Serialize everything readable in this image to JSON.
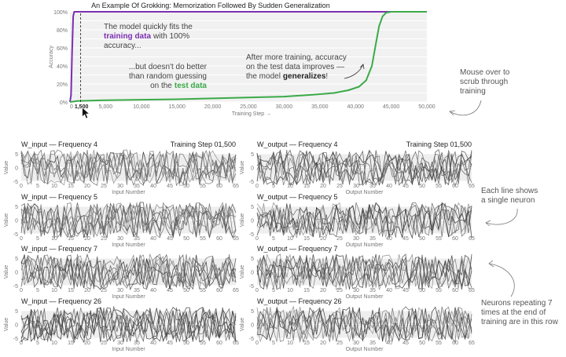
{
  "title": "An Example Of Grokking: Memorization Followed By Sudden Generalization",
  "chart_data": [
    {
      "type": "line",
      "xlabel": "Training Step →",
      "ylabel": "Accuracy",
      "xlim": [
        0,
        50000
      ],
      "ylim": [
        0,
        100
      ],
      "x_ticks": [
        0,
        5000,
        10000,
        15000,
        20000,
        25000,
        30000,
        35000,
        40000,
        45000,
        50000
      ],
      "x_tick_labels": [
        "0",
        "5,000",
        "10,000",
        "15,000",
        "20,000",
        "25,000",
        "30,000",
        "35,000",
        "40,000",
        "45,000",
        "50,000"
      ],
      "y_ticks": [
        0,
        20,
        40,
        60,
        80,
        100
      ],
      "y_tick_labels": [
        "0%",
        "20%",
        "40%",
        "60%",
        "80%",
        "100%"
      ],
      "current_step": 1500,
      "current_step_label": "1,500",
      "series": [
        {
          "key": "train",
          "color": "#7b2fb0",
          "x": [
            0,
            150,
            300,
            450,
            600,
            1000,
            2000,
            10000,
            20000,
            30000,
            40000,
            45000,
            50000
          ],
          "values": [
            0,
            8,
            55,
            95,
            100,
            100,
            100,
            100,
            100,
            100,
            100,
            100,
            100
          ]
        },
        {
          "key": "test",
          "color": "#3aaa48",
          "x": [
            0,
            1000,
            5000,
            10000,
            15000,
            20000,
            25000,
            30000,
            34000,
            37000,
            39000,
            40500,
            41500,
            42300,
            42800,
            43300,
            43800,
            44300,
            45000,
            50000
          ],
          "values": [
            0,
            1,
            2,
            2.5,
            3,
            4,
            5,
            6,
            8,
            10,
            13,
            17,
            24,
            40,
            62,
            84,
            95,
            99,
            100,
            100
          ]
        }
      ],
      "annotations": {
        "train_pre": "The model quickly fits the",
        "train_bold": "training data",
        "train_post": "with 100%",
        "train_line2": "accuracy...",
        "test_line1": "...but doesn't do better",
        "test_line2": "than random guessing",
        "test_pre": "on the",
        "test_bold": "test data",
        "gen_line1": "After more training, accuracy",
        "gen_line2": "on the test data improves —",
        "gen_pre": "the model",
        "gen_bold": "generalizes",
        "gen_post": "!"
      }
    },
    {
      "type": "line",
      "panel": "W_input — Frequency 4",
      "xlabel": "Input Number",
      "ylabel": "Value",
      "xlim": [
        0,
        65
      ],
      "ylim": [
        -5,
        5
      ],
      "y_ticks": [
        -5,
        0,
        5
      ],
      "x_ticks": [
        0,
        5,
        10,
        15,
        20,
        25,
        30,
        35,
        40,
        45,
        50,
        55,
        60,
        65
      ],
      "status": "Training Step 01,500"
    },
    {
      "type": "line",
      "panel": "W_output — Frequency 4",
      "xlabel": "Output Number",
      "ylabel": "Value",
      "xlim": [
        0,
        65
      ],
      "ylim": [
        -5,
        5
      ],
      "y_ticks": [
        -5,
        0,
        5
      ],
      "x_ticks": [
        0,
        5,
        10,
        15,
        20,
        25,
        30,
        35,
        40,
        45,
        50,
        55,
        60,
        65
      ],
      "status": "Training Step 01,500"
    },
    {
      "type": "line",
      "panel": "W_input — Frequency 5",
      "xlabel": "Input Number",
      "ylabel": "Value",
      "xlim": [
        0,
        65
      ],
      "ylim": [
        -5,
        5
      ],
      "y_ticks": [
        -5,
        0,
        5
      ],
      "x_ticks": [
        0,
        5,
        10,
        15,
        20,
        25,
        30,
        35,
        40,
        45,
        50,
        55,
        60,
        65
      ]
    },
    {
      "type": "line",
      "panel": "W_output — Frequency 5",
      "xlabel": "Output Number",
      "ylabel": "Value",
      "xlim": [
        0,
        65
      ],
      "ylim": [
        -5,
        5
      ],
      "y_ticks": [
        -5,
        0,
        5
      ],
      "x_ticks": [
        0,
        5,
        10,
        15,
        20,
        25,
        30,
        35,
        40,
        45,
        50,
        55,
        60,
        65
      ]
    },
    {
      "type": "line",
      "panel": "W_input — Frequency 7",
      "xlabel": "Input Number",
      "ylabel": "Value",
      "xlim": [
        0,
        65
      ],
      "ylim": [
        -5,
        5
      ],
      "y_ticks": [
        -5,
        0,
        5
      ],
      "x_ticks": [
        0,
        5,
        10,
        15,
        20,
        25,
        30,
        35,
        40,
        45,
        50,
        55,
        60,
        65
      ]
    },
    {
      "type": "line",
      "panel": "W_output — Frequency 7",
      "xlabel": "Output Number",
      "ylabel": "Value",
      "xlim": [
        0,
        65
      ],
      "ylim": [
        -5,
        5
      ],
      "y_ticks": [
        -5,
        0,
        5
      ],
      "x_ticks": [
        0,
        5,
        10,
        15,
        20,
        25,
        30,
        35,
        40,
        45,
        50,
        55,
        60,
        65
      ]
    },
    {
      "type": "line",
      "panel": "W_input — Frequency 26",
      "xlabel": "Input Number",
      "ylabel": "Value",
      "xlim": [
        0,
        65
      ],
      "ylim": [
        -5,
        5
      ],
      "y_ticks": [
        -5,
        0,
        5
      ],
      "x_ticks": [
        0,
        5,
        10,
        15,
        20,
        25,
        30,
        35,
        40,
        45,
        50,
        55,
        60,
        65
      ]
    },
    {
      "type": "line",
      "panel": "W_output — Frequency 26",
      "xlabel": "Output Number",
      "ylabel": "Value",
      "xlim": [
        0,
        65
      ],
      "ylim": [
        -5,
        5
      ],
      "y_ticks": [
        -5,
        0,
        5
      ],
      "x_ticks": [
        0,
        5,
        10,
        15,
        20,
        25,
        30,
        35,
        40,
        45,
        50,
        55,
        60,
        65
      ]
    }
  ],
  "side_notes": {
    "scrub": [
      "Mouse over to",
      "scrub through",
      "training"
    ],
    "neuron": [
      "Each line shows",
      "a single neuron"
    ],
    "repeat": [
      "Neurons repeating 7",
      "times at the end of",
      "training are in this row"
    ]
  }
}
